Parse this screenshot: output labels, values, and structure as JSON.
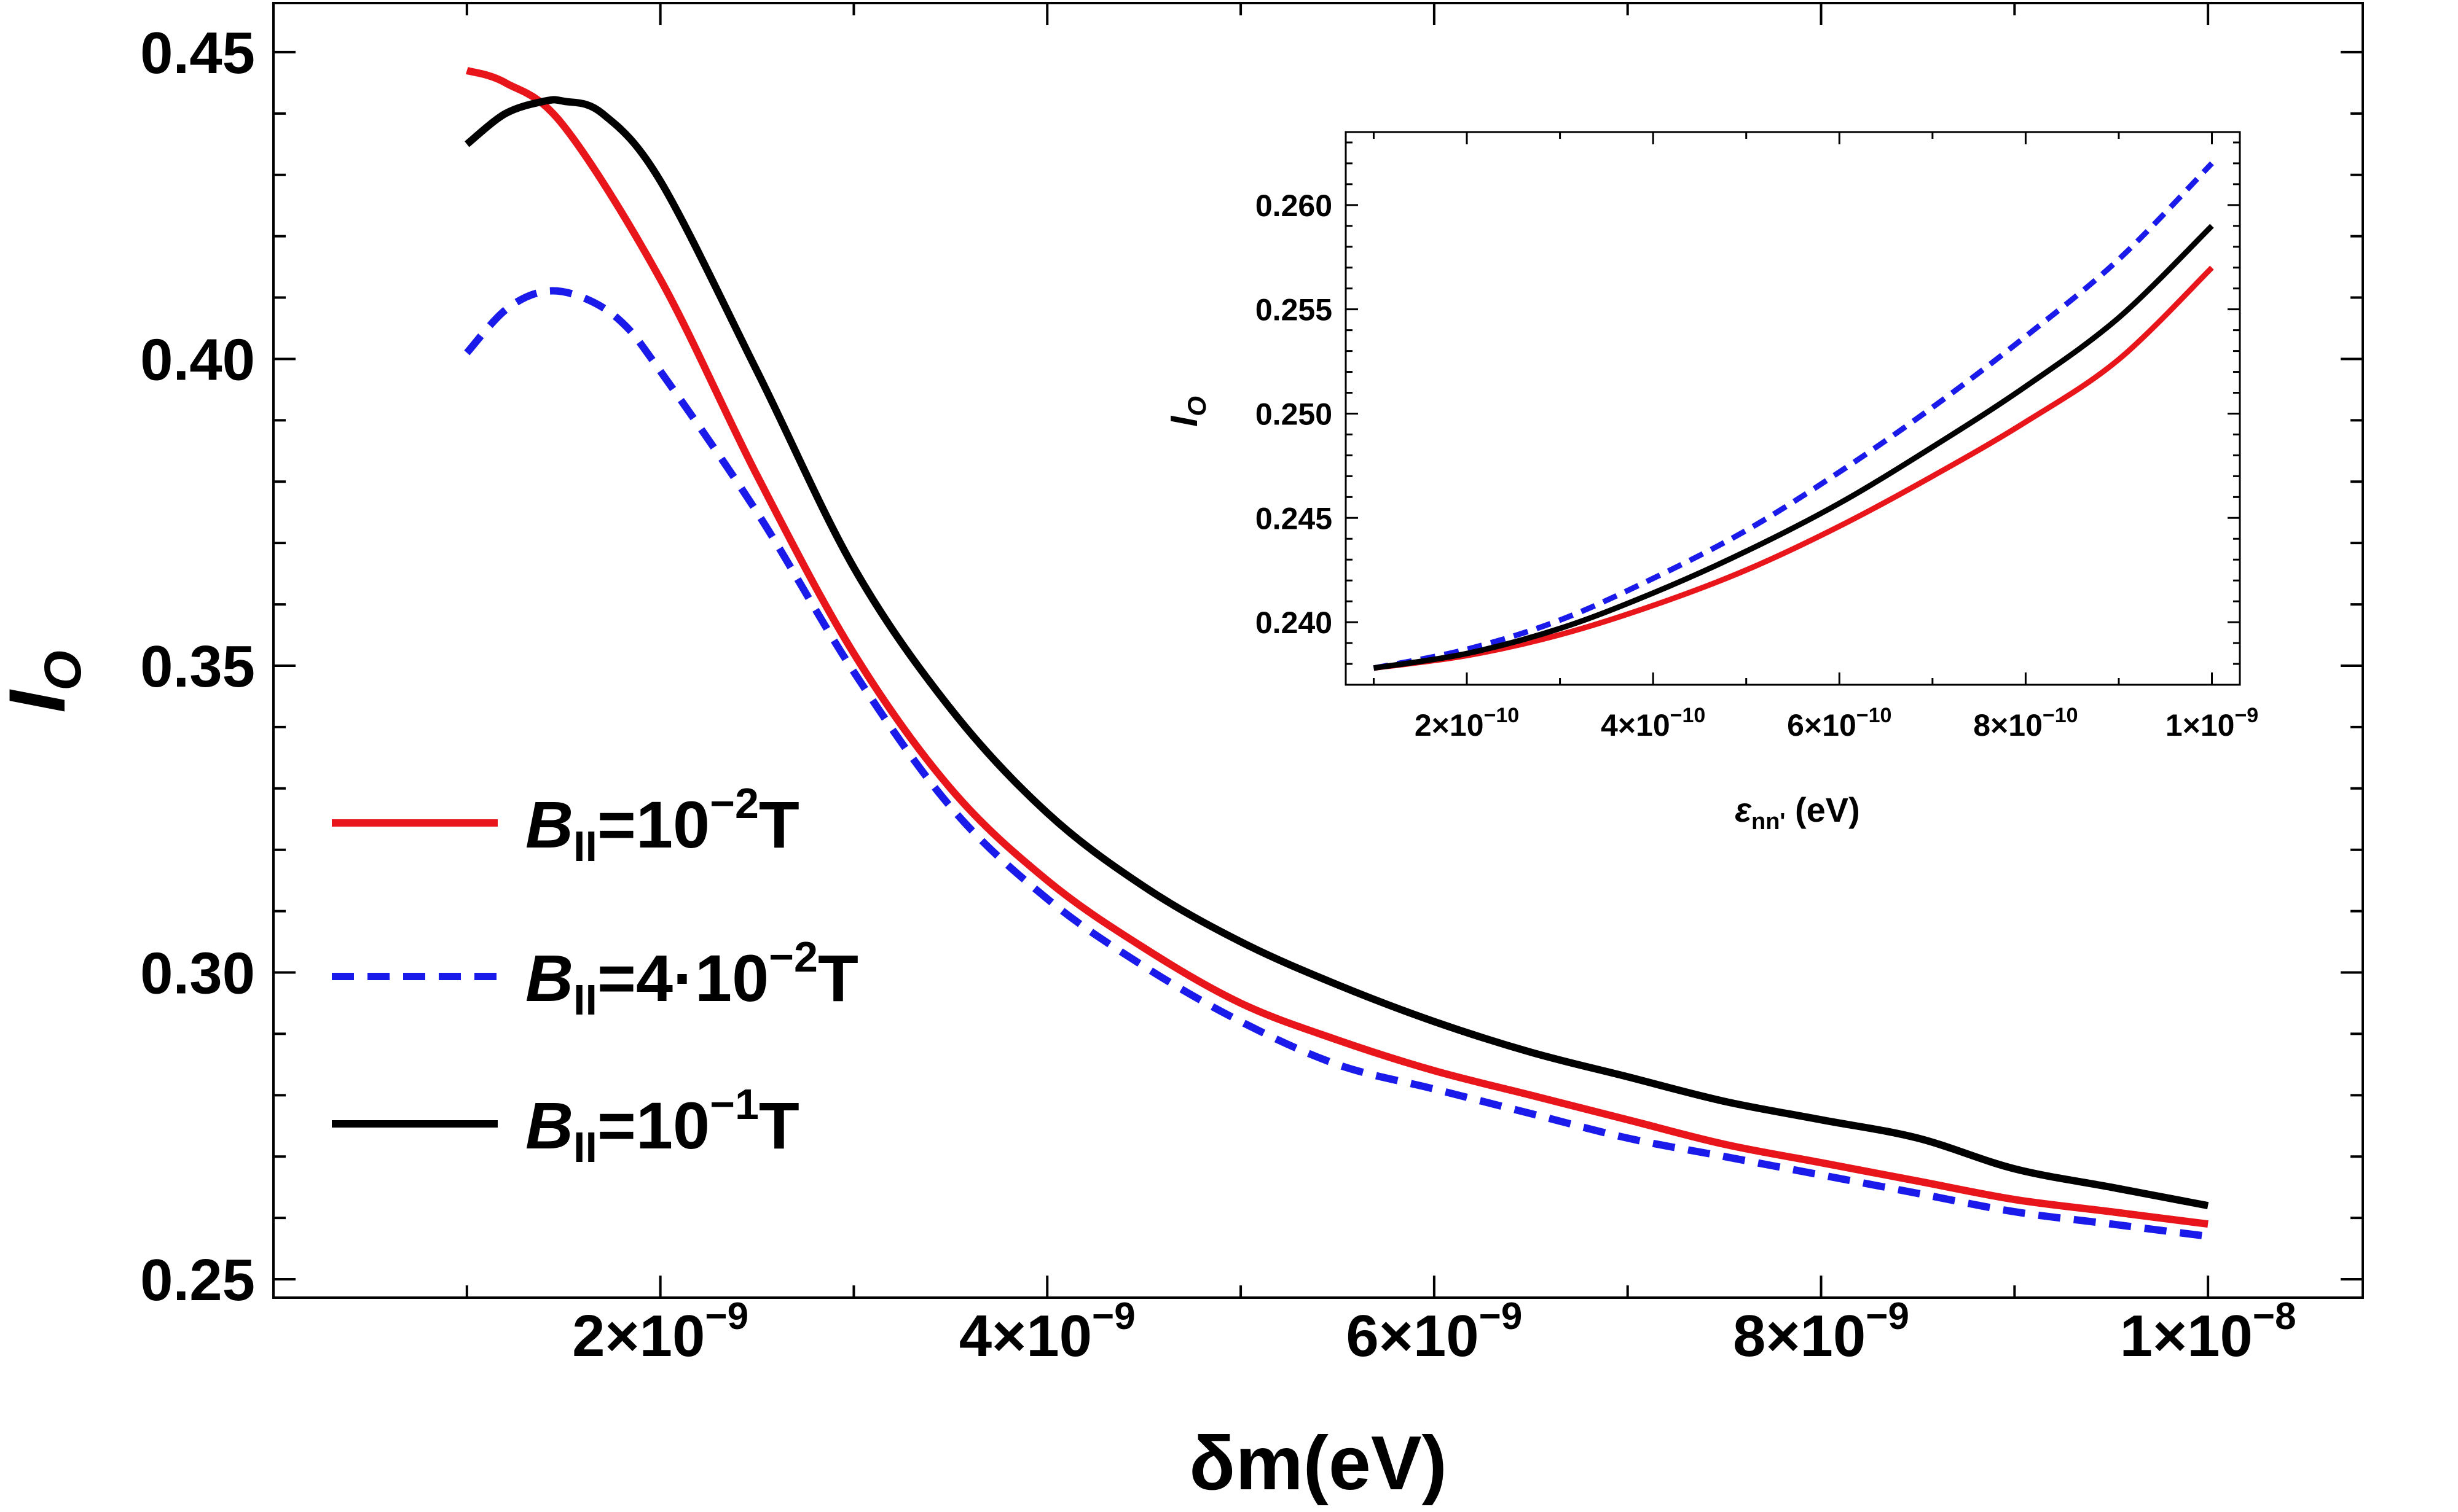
{
  "chart_data": [
    {
      "type": "line",
      "name": "main",
      "title": "",
      "xlabel": "δm(eV)",
      "ylabel": "I",
      "ylabel_sub": "O",
      "xlim": [
        0,
        1.08e-08
      ],
      "ylim": [
        0.247,
        0.458
      ],
      "x_ticks": [
        {
          "value": 2e-09,
          "mantissa": "2",
          "exp": "-9"
        },
        {
          "value": 4e-09,
          "mantissa": "4",
          "exp": "-9"
        },
        {
          "value": 6e-09,
          "mantissa": "6",
          "exp": "-9"
        },
        {
          "value": 8e-09,
          "mantissa": "8",
          "exp": "-9"
        },
        {
          "value": 1e-08,
          "mantissa": "1",
          "exp": "-8"
        }
      ],
      "y_ticks": [
        {
          "value": 0.25,
          "label": "0.25"
        },
        {
          "value": 0.3,
          "label": "0.30"
        },
        {
          "value": 0.35,
          "label": "0.35"
        },
        {
          "value": 0.4,
          "label": "0.40"
        },
        {
          "value": 0.45,
          "label": "0.45"
        }
      ],
      "series": [
        {
          "name": "B=10^-2 T",
          "color": "#e8151b",
          "dash": "solid",
          "x": [
            1e-09,
            1.2e-09,
            1.5e-09,
            2e-09,
            2.5e-09,
            3e-09,
            3.5e-09,
            4e-09,
            4.5e-09,
            5e-09,
            5.5e-09,
            6e-09,
            6.5e-09,
            7e-09,
            7.5e-09,
            8e-09,
            8.5e-09,
            9e-09,
            9.5e-09,
            1e-08
          ],
          "y": [
            0.447,
            0.445,
            0.438,
            0.413,
            0.381,
            0.352,
            0.33,
            0.315,
            0.304,
            0.295,
            0.289,
            0.284,
            0.28,
            0.276,
            0.272,
            0.269,
            0.266,
            0.263,
            0.261,
            0.259
          ]
        },
        {
          "name": "B=4·10^-2 T",
          "color": "#1a1aeb",
          "dash": "dashed",
          "x": [
            1e-09,
            1.2e-09,
            1.4e-09,
            1.6e-09,
            1.8e-09,
            2e-09,
            2.5e-09,
            3e-09,
            3.5e-09,
            4e-09,
            4.5e-09,
            5e-09,
            5.5e-09,
            6e-09,
            6.5e-09,
            7e-09,
            7.5e-09,
            8e-09,
            8.5e-09,
            9e-09,
            9.5e-09,
            1e-08
          ],
          "y": [
            0.401,
            0.408,
            0.411,
            0.41,
            0.406,
            0.398,
            0.375,
            0.349,
            0.327,
            0.312,
            0.301,
            0.292,
            0.285,
            0.281,
            0.277,
            0.273,
            0.27,
            0.267,
            0.264,
            0.261,
            0.259,
            0.257
          ]
        },
        {
          "name": "B=10^-1 T",
          "color": "#000000",
          "dash": "solid",
          "x": [
            1e-09,
            1.2e-09,
            1.4e-09,
            1.5e-09,
            1.7e-09,
            2e-09,
            2.5e-09,
            3e-09,
            3.5e-09,
            4e-09,
            4.5e-09,
            5e-09,
            5.5e-09,
            6e-09,
            6.5e-09,
            7e-09,
            7.5e-09,
            8e-09,
            8.5e-09,
            9e-09,
            9.5e-09,
            1e-08
          ],
          "y": [
            0.435,
            0.44,
            0.442,
            0.442,
            0.44,
            0.429,
            0.398,
            0.366,
            0.343,
            0.326,
            0.314,
            0.305,
            0.298,
            0.292,
            0.287,
            0.283,
            0.279,
            0.276,
            0.273,
            0.268,
            0.265,
            0.262
          ]
        }
      ],
      "legend": {
        "position": "center-left",
        "entries": [
          {
            "prefix": "B",
            "sub": "II",
            "mid": "=10",
            "exp": "−2",
            "suffix": "T"
          },
          {
            "prefix": "B",
            "sub": "II",
            "mid": "=4·10",
            "exp": "−2",
            "suffix": "T"
          },
          {
            "prefix": "B",
            "sub": "II",
            "mid": "=10",
            "exp": "−1",
            "suffix": "T"
          }
        ]
      }
    },
    {
      "type": "line",
      "name": "inset",
      "title": "",
      "xlabel": "ε",
      "xlabel_sub": "nn'",
      "xlabel_unit": " (eV)",
      "ylabel": "I",
      "ylabel_sub": "O",
      "xlim": [
        7e-11,
        1.03e-09
      ],
      "ylim": [
        0.237,
        0.2635
      ],
      "x_ticks": [
        {
          "value": 2e-10,
          "mantissa": "2",
          "exp": "-10"
        },
        {
          "value": 4e-10,
          "mantissa": "4",
          "exp": "-10"
        },
        {
          "value": 6e-10,
          "mantissa": "6",
          "exp": "-10"
        },
        {
          "value": 8e-10,
          "mantissa": "8",
          "exp": "-10"
        },
        {
          "value": 1e-09,
          "mantissa": "1",
          "exp": "-9"
        }
      ],
      "y_ticks": [
        {
          "value": 0.24,
          "label": "0.240"
        },
        {
          "value": 0.245,
          "label": "0.245"
        },
        {
          "value": 0.25,
          "label": "0.250"
        },
        {
          "value": 0.255,
          "label": "0.255"
        },
        {
          "value": 0.26,
          "label": "0.260"
        }
      ],
      "series": [
        {
          "name": "B=10^-2 T",
          "color": "#e8151b",
          "dash": "solid",
          "x": [
            1e-10,
            2e-10,
            3e-10,
            4e-10,
            5e-10,
            6e-10,
            7e-10,
            8e-10,
            9e-10,
            1e-09
          ],
          "y": [
            0.2378,
            0.2384,
            0.2394,
            0.2408,
            0.2425,
            0.2446,
            0.247,
            0.2496,
            0.2526,
            0.257
          ]
        },
        {
          "name": "B=4·10^-2 T",
          "color": "#1a1aeb",
          "dash": "dashed",
          "x": [
            1e-10,
            2e-10,
            3e-10,
            4e-10,
            5e-10,
            6e-10,
            7e-10,
            8e-10,
            9e-10,
            1e-09
          ],
          "y": [
            0.2378,
            0.2387,
            0.2401,
            0.2421,
            0.2444,
            0.2472,
            0.2503,
            0.2537,
            0.2574,
            0.262
          ]
        },
        {
          "name": "B=10^-1 T",
          "color": "#000000",
          "dash": "solid",
          "x": [
            1e-10,
            2e-10,
            3e-10,
            4e-10,
            5e-10,
            6e-10,
            7e-10,
            8e-10,
            9e-10,
            1e-09
          ],
          "y": [
            0.2378,
            0.2385,
            0.2397,
            0.2414,
            0.2434,
            0.2457,
            0.2484,
            0.2513,
            0.2546,
            0.259
          ]
        }
      ]
    }
  ]
}
